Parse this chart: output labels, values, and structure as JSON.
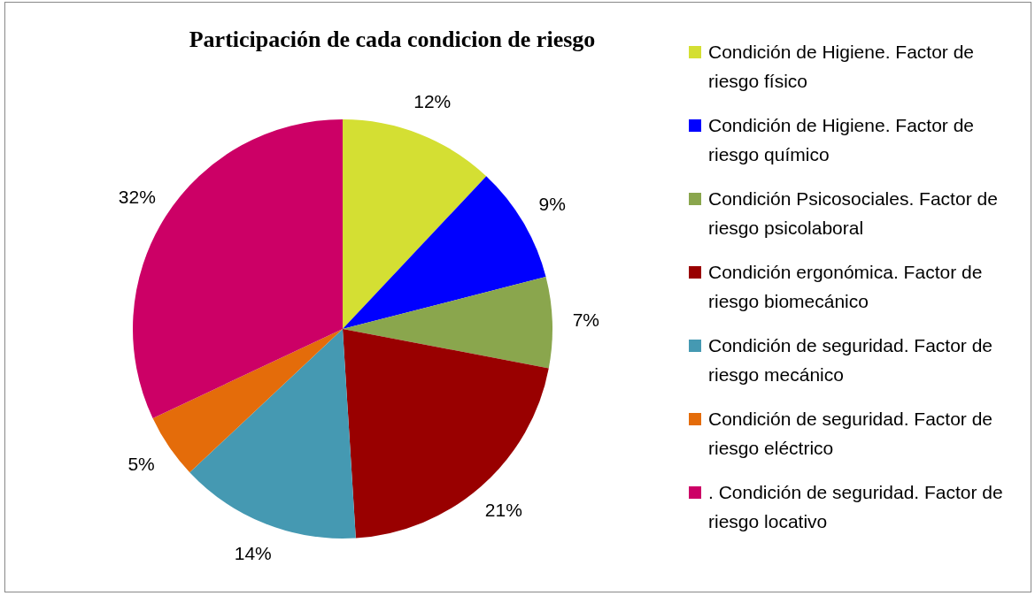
{
  "chart_data": {
    "type": "pie",
    "title": "Participación de cada condicion de riesgo",
    "categories": [
      "Condición de Higiene. Factor de riesgo físico",
      "Condición de Higiene. Factor de riesgo químico",
      "Condición Psicosociales. Factor de riesgo psicolaboral",
      "Condición ergonómica. Factor de riesgo biomecánico",
      "Condición de seguridad. Factor de riesgo mecánico",
      "Condición de seguridad. Factor de riesgo eléctrico",
      ". Condición de seguridad. Factor de riesgo locativo"
    ],
    "values": [
      12,
      9,
      7,
      21,
      14,
      5,
      32
    ],
    "value_labels": [
      "12%",
      "9%",
      "7%",
      "21%",
      "14%",
      "5%",
      "32%"
    ],
    "colors": [
      "#d4df33",
      "#0000ff",
      "#8aa64d",
      "#990000",
      "#4599b2",
      "#e46c0a",
      "#cc0066"
    ],
    "legend": "right"
  }
}
